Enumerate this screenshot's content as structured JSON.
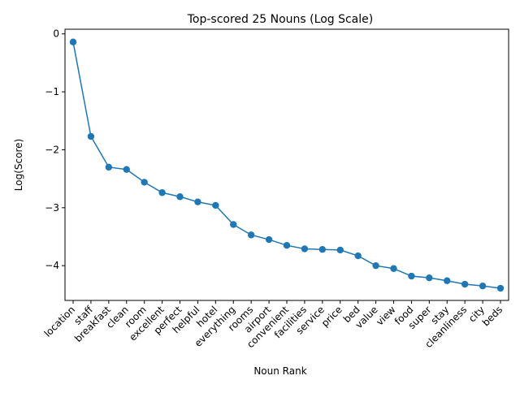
{
  "chart_data": {
    "type": "line",
    "title": "Top-scored 25 Nouns (Log Scale)",
    "xlabel": "Noun Rank",
    "ylabel": "Log(Score)",
    "ylim": [
      -4.6,
      0.08
    ],
    "y_ticks": [
      0,
      -1,
      -2,
      -3,
      -4
    ],
    "y_tick_labels": [
      "0",
      "−1",
      "−2",
      "−3",
      "−4"
    ],
    "grid": false,
    "legend": "none",
    "marker": "circle",
    "series_color": "#1f77b4",
    "categories": [
      "location",
      "staff",
      "breakfast",
      "clean",
      "room",
      "excellent",
      "perfect",
      "helpful",
      "hotel",
      "everything",
      "rooms",
      "airport",
      "convenient",
      "facilities",
      "service",
      "price",
      "bed",
      "value",
      "view",
      "food",
      "super",
      "stay",
      "cleanliness",
      "city",
      "beds"
    ],
    "values": [
      -0.14,
      -1.77,
      -2.3,
      -2.34,
      -2.56,
      -2.74,
      -2.81,
      -2.9,
      -2.96,
      -3.29,
      -3.47,
      -3.55,
      -3.65,
      -3.71,
      -3.72,
      -3.73,
      -3.83,
      -4.0,
      -4.05,
      -4.18,
      -4.21,
      -4.26,
      -4.32,
      -4.35,
      -4.39
    ]
  }
}
